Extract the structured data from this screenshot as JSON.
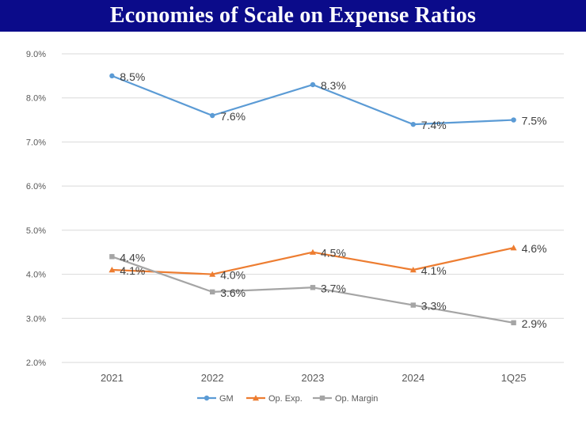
{
  "title": "Economies of Scale on Expense Ratios",
  "chart_data": {
    "type": "line",
    "title": "Economies of Scale on Expense Ratios",
    "xlabel": "",
    "ylabel": "",
    "categories": [
      "2021",
      "2022",
      "2023",
      "2024",
      "1Q25"
    ],
    "ylim": [
      2.0,
      9.0
    ],
    "yticks": [
      "2.0%",
      "3.0%",
      "4.0%",
      "5.0%",
      "6.0%",
      "7.0%",
      "8.0%",
      "9.0%"
    ],
    "grid": true,
    "legend_position": "bottom",
    "series": [
      {
        "name": "GM",
        "color": "#5b9bd5",
        "marker": "circle",
        "values": [
          8.5,
          7.6,
          8.3,
          7.4,
          7.5
        ],
        "labels": [
          "8.5%",
          "7.6%",
          "8.3%",
          "7.4%",
          "7.5%"
        ]
      },
      {
        "name": "Op. Exp.",
        "color": "#ed7d31",
        "marker": "triangle",
        "values": [
          4.1,
          4.0,
          4.5,
          4.1,
          4.6
        ],
        "labels": [
          "4.1%",
          "4.0%",
          "4.5%",
          "4.1%",
          "4.6%"
        ]
      },
      {
        "name": "Op. Margin",
        "color": "#a5a5a5",
        "marker": "square",
        "values": [
          4.4,
          3.6,
          3.7,
          3.3,
          2.9
        ],
        "labels": [
          "4.4%",
          "3.6%",
          "3.7%",
          "3.3%",
          "2.9%"
        ]
      }
    ]
  }
}
